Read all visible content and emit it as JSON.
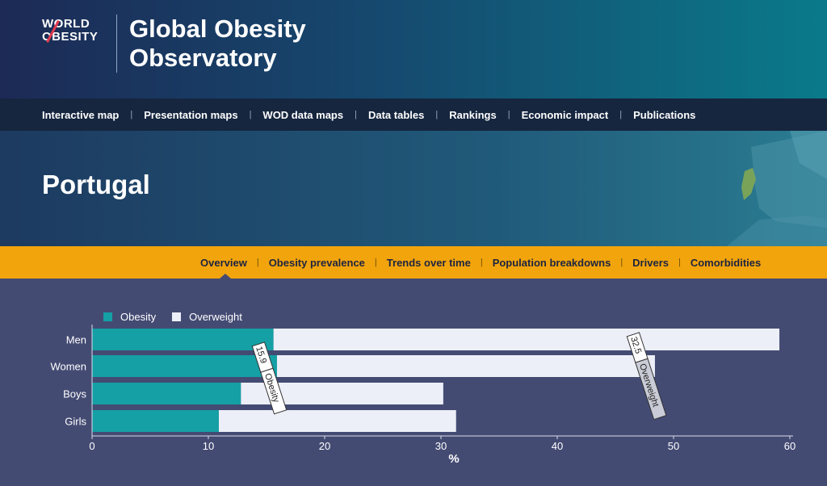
{
  "header": {
    "logo_line1": "WORLD",
    "logo_line2": "OBESITY",
    "title_line1": "Global Obesity",
    "title_line2": "Observatory"
  },
  "topnav": [
    "Interactive map",
    "Presentation maps",
    "WOD data maps",
    "Data tables",
    "Rankings",
    "Economic impact",
    "Publications"
  ],
  "hero": {
    "country": "Portugal"
  },
  "subnav": {
    "items": [
      "Overview",
      "Obesity prevalence",
      "Trends over time",
      "Population breakdowns",
      "Drivers",
      "Comorbidities"
    ],
    "active": "Overview"
  },
  "colors": {
    "obesity": "#14a0a5",
    "overweight": "#edeff8",
    "accent": "#f2a40c"
  },
  "chart_data": {
    "type": "bar",
    "orientation": "horizontal",
    "stacked": true,
    "categories": [
      "Men",
      "Women",
      "Boys",
      "Girls"
    ],
    "series": [
      {
        "name": "Obesity",
        "values": [
          15.6,
          15.9,
          12.8,
          10.9
        ]
      },
      {
        "name": "Overweight",
        "values": [
          43.5,
          32.5,
          17.4,
          20.4
        ]
      }
    ],
    "annotations": [
      {
        "series": "Obesity",
        "category": "Women",
        "value": "15.9",
        "label": "Obesity"
      },
      {
        "series": "Overweight",
        "category": "Women",
        "value": "32.5",
        "label": "Overweight"
      }
    ],
    "xlabel": "%",
    "xlim": [
      0,
      60
    ],
    "xticks": [
      "0",
      "10",
      "20",
      "30",
      "40",
      "50",
      "60"
    ],
    "legend": "top-left"
  }
}
